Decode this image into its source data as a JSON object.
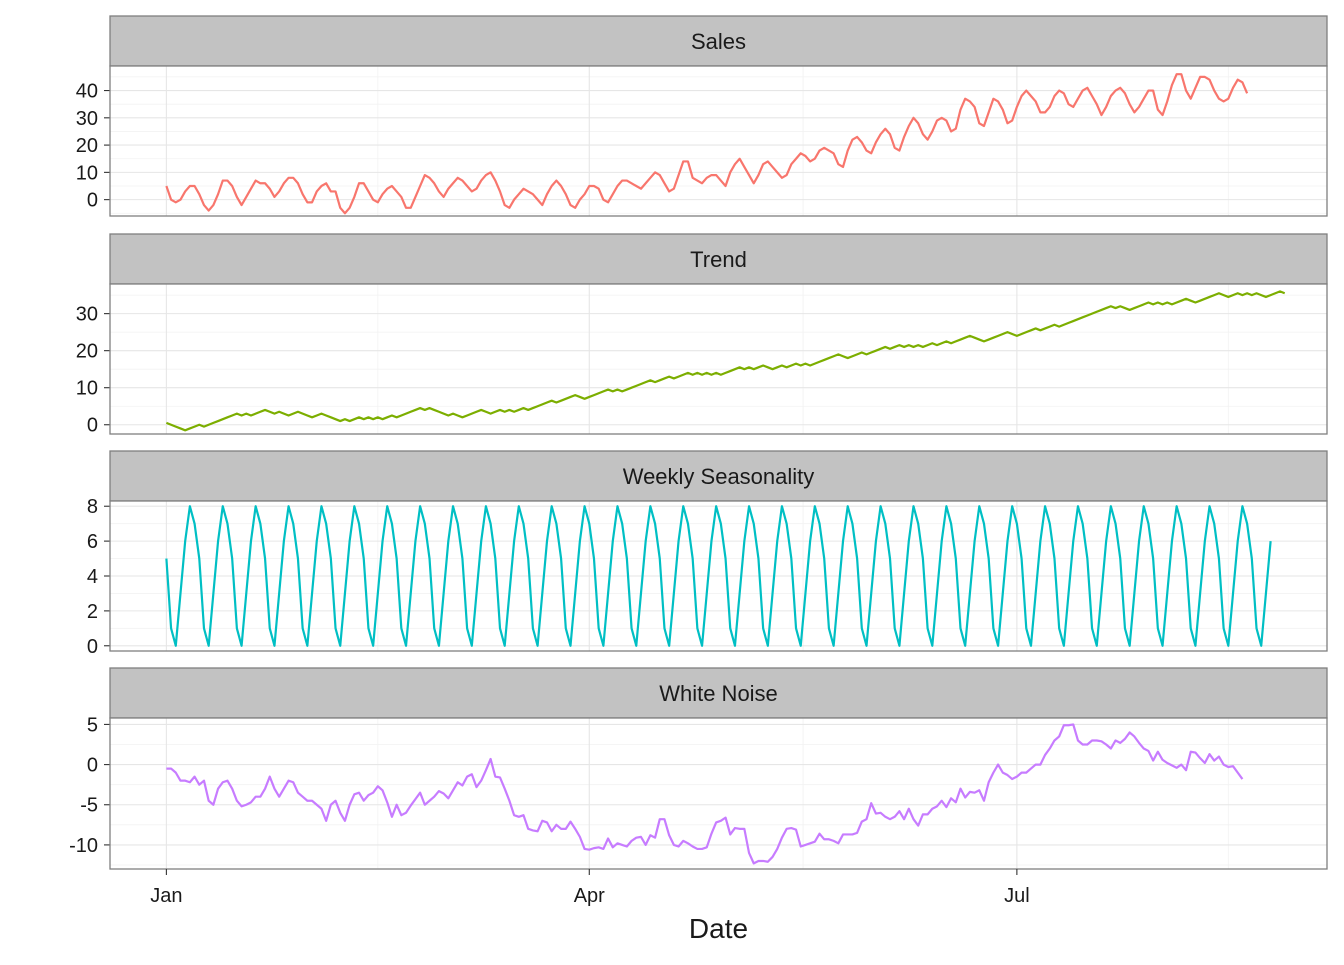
{
  "chart_data": {
    "type": "line",
    "xlabel": "Date",
    "x_tick_labels": [
      "Jan",
      "Apr",
      "Jul"
    ],
    "x_tick_days": [
      0,
      90,
      181
    ],
    "x_range_days": [
      -12,
      247
    ],
    "n_days": 236,
    "panels": [
      {
        "name": "Sales",
        "color": "#f8766d",
        "ylim": [
          -6,
          49
        ],
        "yticks": [
          0,
          10,
          20,
          30,
          40
        ],
        "yticklabels": [
          "0",
          "10",
          "20",
          "30",
          "40"
        ],
        "values": [
          5,
          0,
          -1,
          0,
          3,
          5,
          5,
          2,
          -2,
          -4,
          -2,
          2,
          7,
          7,
          5,
          1,
          -2,
          1,
          4,
          7,
          6,
          6,
          4,
          1,
          3,
          6,
          8,
          8,
          6,
          2,
          -1,
          -1,
          3,
          5,
          6,
          3,
          3,
          -3,
          -5,
          -3,
          1,
          6,
          6,
          3,
          0,
          -1,
          2,
          4,
          5,
          3,
          1,
          -3,
          -3,
          1,
          5,
          9,
          8,
          6,
          3,
          1,
          4,
          6,
          8,
          7,
          5,
          3,
          4,
          7,
          9,
          10,
          7,
          3,
          -2,
          -3,
          0,
          2,
          4,
          3,
          2,
          0,
          -2,
          2,
          5,
          7,
          5,
          2,
          -2,
          -3,
          0,
          2,
          5,
          5,
          4,
          0,
          -1,
          2,
          5,
          7,
          7,
          6,
          5,
          4,
          6,
          8,
          10,
          9,
          6,
          3,
          4,
          9,
          14,
          14,
          8,
          7,
          6,
          8,
          9,
          9,
          7,
          5,
          10,
          13,
          15,
          12,
          9,
          6,
          9,
          13,
          14,
          12,
          10,
          8,
          9,
          13,
          15,
          17,
          16,
          14,
          15,
          18,
          19,
          18,
          17,
          13,
          12,
          18,
          22,
          23,
          21,
          18,
          17,
          21,
          24,
          26,
          24,
          19,
          18,
          23,
          27,
          30,
          28,
          24,
          22,
          25,
          29,
          30,
          29,
          25,
          26,
          33,
          37,
          36,
          34,
          28,
          27,
          32,
          37,
          36,
          33,
          28,
          29,
          34,
          38,
          40,
          38,
          36,
          32,
          32,
          34,
          38,
          40,
          39,
          35,
          34,
          37,
          40,
          41,
          38,
          35,
          31,
          34,
          38,
          40,
          41,
          39,
          35,
          32,
          34,
          37,
          40,
          40,
          33,
          31,
          36,
          42,
          46,
          46,
          40,
          37,
          41,
          45,
          45,
          44,
          40,
          37,
          36,
          37,
          41,
          44,
          43,
          39
        ]
      },
      {
        "name": "Trend",
        "color": "#7cae00",
        "ylim": [
          -2.5,
          38
        ],
        "yticks": [
          0,
          10,
          20,
          30
        ],
        "yticklabels": [
          "0",
          "10",
          "20",
          "30"
        ],
        "values": [
          0.5,
          0,
          -0.5,
          -1,
          -1.5,
          -1,
          -0.5,
          0,
          -0.5,
          0,
          0.5,
          1,
          1.5,
          2,
          2.5,
          3,
          2.5,
          3,
          2.5,
          3,
          3.5,
          4,
          3.5,
          3,
          3.5,
          3,
          2.5,
          3,
          3.5,
          3,
          2.5,
          2,
          2.5,
          3,
          2.5,
          2,
          1.5,
          1,
          1.5,
          1,
          1.5,
          2,
          1.5,
          2,
          1.5,
          2,
          1.5,
          2,
          2.5,
          2,
          2.5,
          3,
          3.5,
          4,
          4.5,
          4,
          4.5,
          4,
          3.5,
          3,
          2.5,
          3,
          2.5,
          2,
          2.5,
          3,
          3.5,
          4,
          3.5,
          3,
          3.5,
          4,
          3.5,
          4,
          3.5,
          4,
          4.5,
          4,
          4.5,
          5,
          5.5,
          6,
          6.5,
          6,
          6.5,
          7,
          7.5,
          8,
          7.5,
          7,
          7.5,
          8,
          8.5,
          9,
          9.5,
          9,
          9.5,
          9,
          9.5,
          10,
          10.5,
          11,
          11.5,
          12,
          11.5,
          12,
          12.5,
          13,
          12.5,
          13,
          13.5,
          14,
          13.5,
          14,
          13.5,
          14,
          13.5,
          14,
          13.5,
          14,
          14.5,
          15,
          15.5,
          15,
          15.5,
          15,
          15.5,
          16,
          15.5,
          15,
          15.5,
          16,
          15.5,
          16,
          16.5,
          16,
          16.5,
          16,
          16.5,
          17,
          17.5,
          18,
          18.5,
          19,
          18.5,
          18,
          18.5,
          19,
          19.5,
          19,
          19.5,
          20,
          20.5,
          21,
          20.5,
          21,
          21.5,
          21,
          21.5,
          21,
          21.5,
          21,
          21.5,
          22,
          21.5,
          22,
          22.5,
          22,
          22.5,
          23,
          23.5,
          24,
          23.5,
          23,
          22.5,
          23,
          23.5,
          24,
          24.5,
          25,
          24.5,
          24,
          24.5,
          25,
          25.5,
          26,
          25.5,
          26,
          26.5,
          27,
          26.5,
          27,
          27.5,
          28,
          28.5,
          29,
          29.5,
          30,
          30.5,
          31,
          31.5,
          32,
          31.5,
          32,
          31.5,
          31,
          31.5,
          32,
          32.5,
          33,
          32.5,
          33,
          32.5,
          33,
          32.5,
          33,
          33.5,
          34,
          33.5,
          33,
          33.5,
          34,
          34.5,
          35,
          35.5,
          35,
          34.5,
          35,
          35.5,
          35,
          35.5,
          35,
          35.5,
          35,
          34.5,
          35,
          35.5,
          36,
          35.5
        ]
      },
      {
        "name": "Weekly Seasonality",
        "color": "#00bfc4",
        "ylim": [
          -0.3,
          8.3
        ],
        "yticks": [
          0,
          2,
          4,
          6,
          8
        ],
        "yticklabels": [
          "0",
          "2",
          "4",
          "6",
          "8"
        ],
        "weekly_pattern": [
          5,
          1,
          0,
          3,
          6,
          8,
          7
        ],
        "values": []
      },
      {
        "name": "White Noise",
        "color": "#c77cff",
        "ylim": [
          -13,
          5.8
        ],
        "yticks": [
          -10,
          -5,
          0,
          5
        ],
        "yticklabels": [
          "-10",
          "-5",
          "0",
          "5"
        ],
        "values": [
          -0.5,
          -0.5,
          -1,
          -2,
          -2,
          -2.2,
          -1.5,
          -2.5,
          -2,
          -4.5,
          -5,
          -3,
          -2.2,
          -2,
          -3,
          -4.5,
          -5.2,
          -5,
          -4.7,
          -4,
          -4,
          -3,
          -1.5,
          -3,
          -4,
          -3,
          -2,
          -2.2,
          -3.5,
          -4,
          -4.5,
          -4.5,
          -5,
          -5.5,
          -7,
          -5,
          -4.5,
          -6,
          -7,
          -5,
          -3.7,
          -3.5,
          -4.5,
          -3.8,
          -3.5,
          -2.7,
          -3.2,
          -4.7,
          -6.5,
          -5,
          -6.3,
          -6,
          -5.1,
          -4.3,
          -3.5,
          -5,
          -4.5,
          -4,
          -3.3,
          -3.6,
          -4.2,
          -3.2,
          -2.2,
          -2.6,
          -1.5,
          -1.2,
          -2.8,
          -2,
          -0.7,
          0.7,
          -1.5,
          -1.6,
          -3,
          -4.5,
          -6.3,
          -6.5,
          -6.3,
          -8,
          -8.2,
          -8.3,
          -7,
          -7.2,
          -8.3,
          -7.5,
          -8,
          -8,
          -7.1,
          -8,
          -9,
          -10.5,
          -10.6,
          -10.4,
          -10.3,
          -10.5,
          -9.2,
          -10.3,
          -9.8,
          -10,
          -10.2,
          -9.5,
          -9.1,
          -9,
          -10,
          -8.8,
          -9.1,
          -6.8,
          -6.8,
          -8.8,
          -10,
          -10.2,
          -9.5,
          -9.8,
          -10.2,
          -10.5,
          -10.5,
          -10.3,
          -8.6,
          -7.2,
          -7,
          -6.6,
          -8.7,
          -7.9,
          -8,
          -8,
          -11,
          -12.3,
          -12,
          -12,
          -12.1,
          -11.5,
          -10.5,
          -9.1,
          -8,
          -7.9,
          -8.1,
          -10.2,
          -10,
          -9.8,
          -9.6,
          -8.6,
          -9.3,
          -9.3,
          -9.5,
          -9.8,
          -8.7,
          -8.7,
          -8.7,
          -8.5,
          -7.1,
          -6.8,
          -4.8,
          -6.1,
          -6,
          -6.5,
          -6.8,
          -6.5,
          -5.8,
          -6.8,
          -5.5,
          -6.8,
          -7.6,
          -6.2,
          -6.2,
          -5.5,
          -5.2,
          -4.5,
          -5.3,
          -4.2,
          -4.7,
          -3,
          -4.1,
          -3.4,
          -3.5,
          -3.2,
          -4.5,
          -2.2,
          -1,
          0,
          -1,
          -1.3,
          -1.8,
          -1.5,
          -1,
          -1,
          -0.5,
          0,
          0,
          1.2,
          2,
          3,
          3.5,
          4.9,
          4.9,
          5,
          3,
          2.5,
          2.5,
          3,
          3,
          2.9,
          2.5,
          2,
          3,
          2.7,
          3.2,
          4,
          3.5,
          2.7,
          2,
          1.7,
          0.5,
          1.6,
          0.6,
          0.2,
          -0.1,
          -0.4,
          0,
          -0.7,
          1.6,
          1.5,
          0.8,
          0.2,
          1.3,
          0.5,
          1,
          0,
          -0.3,
          -0.2,
          -1,
          -1.8
        ]
      }
    ]
  }
}
